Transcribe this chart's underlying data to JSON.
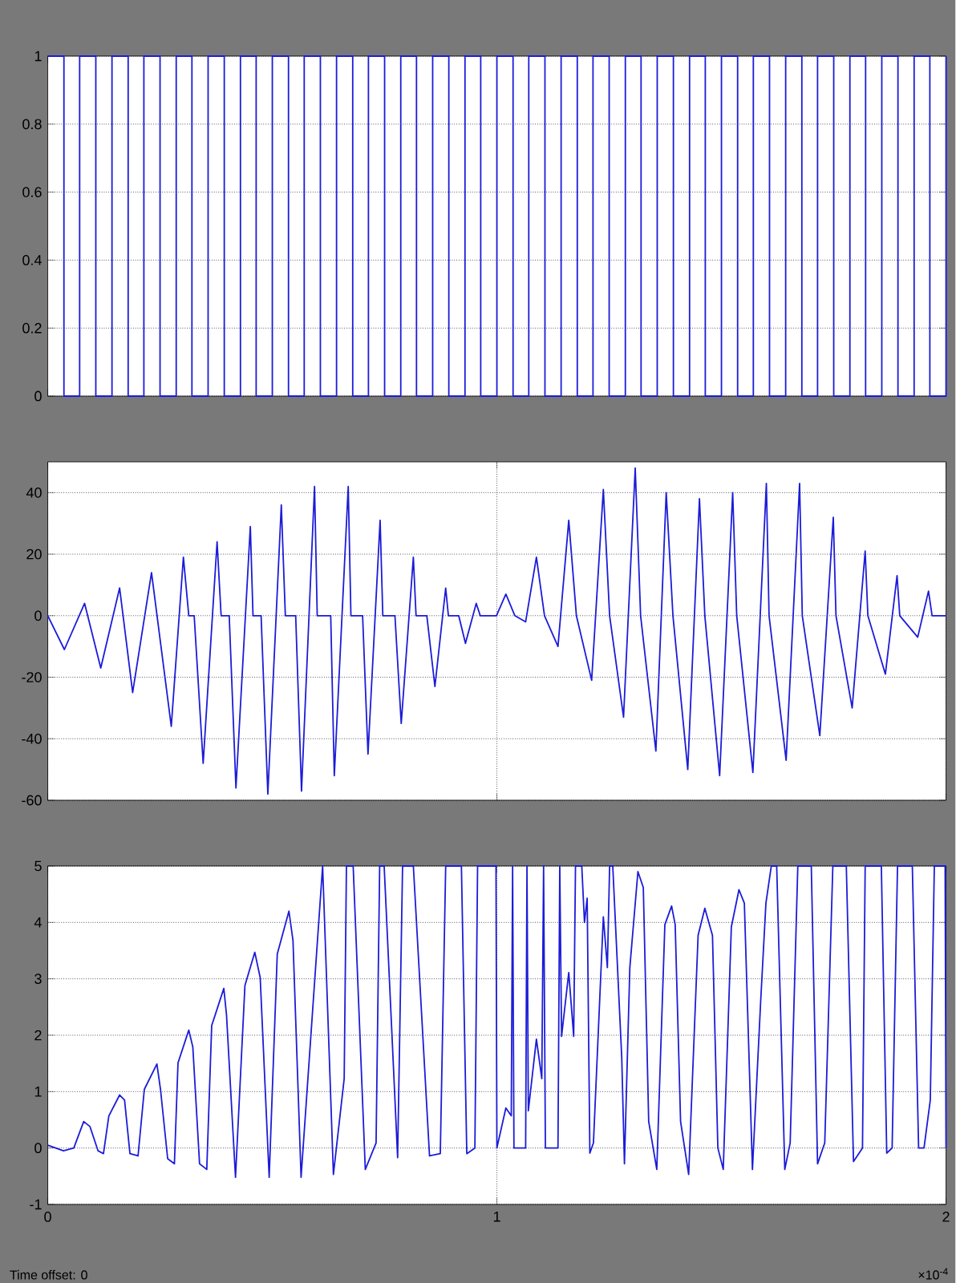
{
  "chart_data": [
    {
      "type": "step",
      "xlim": [
        0,
        2
      ],
      "xticks": [
        0,
        1,
        2
      ],
      "ylim": [
        0,
        1
      ],
      "yticks": [
        0,
        0.2,
        0.4,
        0.6,
        0.8,
        1
      ],
      "grid": "y",
      "tick_labels": "y",
      "color": "#1c1cd8",
      "x": [
        0,
        0.036,
        0.071,
        0.107,
        0.143,
        0.179,
        0.214,
        0.25,
        0.286,
        0.321,
        0.357,
        0.393,
        0.429,
        0.464,
        0.5,
        0.536,
        0.571,
        0.607,
        0.643,
        0.679,
        0.714,
        0.75,
        0.786,
        0.821,
        0.857,
        0.893,
        0.929,
        0.964,
        1,
        1.036,
        1.071,
        1.107,
        1.143,
        1.179,
        1.214,
        1.25,
        1.286,
        1.321,
        1.357,
        1.393,
        1.429,
        1.464,
        1.5,
        1.536,
        1.571,
        1.607,
        1.643,
        1.679,
        1.714,
        1.75,
        1.786,
        1.821,
        1.857,
        1.893,
        1.929,
        1.964,
        2
      ],
      "values": [
        1,
        0,
        1,
        0,
        1,
        0,
        1,
        0,
        1,
        0,
        1,
        0,
        1,
        0,
        1,
        0,
        1,
        0,
        1,
        0,
        1,
        0,
        1,
        0,
        1,
        0,
        1,
        0,
        1,
        0,
        1,
        0,
        1,
        0,
        1,
        0,
        1,
        0,
        1,
        0,
        1,
        0,
        1,
        0,
        1,
        0,
        1,
        0,
        1,
        0,
        1,
        0,
        1,
        0,
        1,
        0,
        1
      ]
    },
    {
      "type": "line",
      "xlim": [
        0,
        2
      ],
      "xticks": [
        0,
        1,
        2
      ],
      "ylim": [
        -60,
        50
      ],
      "yticks": [
        -60,
        -40,
        -20,
        0,
        20,
        40
      ],
      "grid": true,
      "tick_labels": "y",
      "color": "#1c1cd8",
      "x": [
        0,
        0.037,
        0.082,
        0.118,
        0.16,
        0.189,
        0.231,
        0.275,
        0.302,
        0.314,
        0.326,
        0.346,
        0.377,
        0.386,
        0.404,
        0.419,
        0.451,
        0.457,
        0.475,
        0.49,
        0.52,
        0.529,
        0.552,
        0.565,
        0.594,
        0.6,
        0.63,
        0.638,
        0.669,
        0.675,
        0.701,
        0.713,
        0.74,
        0.746,
        0.773,
        0.787,
        0.814,
        0.82,
        0.844,
        0.862,
        0.886,
        0.892,
        0.915,
        0.93,
        0.954,
        0.963,
        0.999,
        1.02,
        1.04,
        1.064,
        1.088,
        1.106,
        1.136,
        1.16,
        1.177,
        1.211,
        1.237,
        1.251,
        1.282,
        1.308,
        1.32,
        1.354,
        1.377,
        1.392,
        1.425,
        1.451,
        1.463,
        1.496,
        1.525,
        1.534,
        1.57,
        1.6,
        1.606,
        1.644,
        1.674,
        1.68,
        1.719,
        1.749,
        1.755,
        1.791,
        1.82,
        1.826,
        1.865,
        1.891,
        1.897,
        1.937,
        1.961,
        1.969,
        2
      ],
      "values": [
        0,
        -11,
        4,
        -17,
        9,
        -25,
        14,
        -36,
        19,
        0,
        0,
        -48,
        24,
        0,
        0,
        -56,
        29,
        0,
        0,
        -58,
        36,
        0,
        0,
        -57,
        42,
        0,
        0,
        -52,
        42,
        0,
        0,
        -45,
        31,
        0,
        0,
        -35,
        19,
        0,
        0,
        -23,
        9,
        0,
        0,
        -9,
        4,
        0,
        0,
        7,
        0,
        -2,
        19,
        0,
        -10,
        31,
        0,
        -21,
        41,
        0,
        -33,
        48,
        0,
        -44,
        40,
        0,
        -50,
        38,
        0,
        -52,
        40,
        0,
        -51,
        43,
        0,
        -47,
        43,
        0,
        -39,
        32,
        0,
        -30,
        21,
        0,
        -19,
        13,
        0,
        -7,
        8,
        0,
        0
      ]
    },
    {
      "type": "line",
      "xlim": [
        0,
        2
      ],
      "xticks": [
        0,
        1,
        2
      ],
      "ylim": [
        -1,
        5
      ],
      "yticks": [
        -1,
        0,
        1,
        2,
        3,
        4,
        5
      ],
      "grid": true,
      "color": "#1c1cd8",
      "x": [
        0,
        0.035,
        0.058,
        0.08,
        0.094,
        0.112,
        0.124,
        0.136,
        0.16,
        0.171,
        0.183,
        0.201,
        0.215,
        0.243,
        0.251,
        0.267,
        0.282,
        0.29,
        0.314,
        0.323,
        0.338,
        0.354,
        0.365,
        0.392,
        0.398,
        0.418,
        0.439,
        0.461,
        0.473,
        0.493,
        0.511,
        0.537,
        0.546,
        0.564,
        0.612,
        0.636,
        0.66,
        0.665,
        0.68,
        0.707,
        0.731,
        0.739,
        0.749,
        0.779,
        0.79,
        0.814,
        0.85,
        0.874,
        0.886,
        0.921,
        0.933,
        0.951,
        0.957,
        0.998,
        1.0,
        1.02,
        1.032,
        1.035,
        1.038,
        1.064,
        1.067,
        1.07,
        1.088,
        1.1,
        1.104,
        1.108,
        1.136,
        1.14,
        1.144,
        1.16,
        1.171,
        1.175,
        1.189,
        1.195,
        1.201,
        1.207,
        1.215,
        1.237,
        1.246,
        1.251,
        1.258,
        1.278,
        1.284,
        1.296,
        1.314,
        1.326,
        1.338,
        1.356,
        1.374,
        1.389,
        1.397,
        1.409,
        1.427,
        1.448,
        1.463,
        1.48,
        1.492,
        1.504,
        1.522,
        1.539,
        1.551,
        1.569,
        1.587,
        1.599,
        1.611,
        1.623,
        1.641,
        1.653,
        1.67,
        1.7,
        1.714,
        1.73,
        1.748,
        1.778,
        1.794,
        1.814,
        1.82,
        1.856,
        1.868,
        1.88,
        1.892,
        1.925,
        1.939,
        1.951,
        1.965,
        1.974,
        1.998,
        2
      ],
      "values": [
        0.05,
        -0.05,
        0,
        0.47,
        0.38,
        -0.05,
        -0.1,
        0.57,
        0.94,
        0.85,
        -0.1,
        -0.14,
        1.04,
        1.49,
        1.04,
        -0.19,
        -0.28,
        1.51,
        2.09,
        1.79,
        -0.28,
        -0.38,
        2.17,
        2.83,
        2.36,
        -0.52,
        2.88,
        3.47,
        3.02,
        -0.52,
        3.44,
        4.2,
        3.68,
        -0.52,
        5,
        -0.47,
        1.23,
        5,
        5,
        -0.38,
        0.09,
        5,
        5,
        -0.17,
        5,
        5,
        -0.14,
        -0.1,
        5,
        5,
        -0.1,
        0,
        5,
        5,
        0,
        0.71,
        0.57,
        5,
        0,
        0,
        5,
        0.66,
        1.93,
        1.23,
        5,
        0,
        0,
        5,
        1.98,
        3.11,
        1.98,
        5,
        5,
        4.0,
        4.43,
        -0.09,
        0.09,
        4.1,
        3.2,
        5,
        5,
        1.6,
        -0.28,
        3.2,
        4.9,
        4.62,
        0.47,
        -0.38,
        3.96,
        4.29,
        3.96,
        0.47,
        -0.47,
        3.77,
        4.25,
        3.77,
        0,
        -0.38,
        3.92,
        4.58,
        4.34,
        -0.38,
        2.55,
        4.34,
        5,
        5,
        -0.38,
        0.09,
        5,
        5,
        -0.28,
        0.09,
        5,
        5,
        -0.24,
        0,
        5,
        5,
        -0.09,
        0,
        5,
        5,
        0,
        0,
        0.85,
        5,
        5,
        0
      ],
      "annotations": [
        "Time offset: 0",
        "×10$^{-4}$"
      ]
    }
  ]
}
